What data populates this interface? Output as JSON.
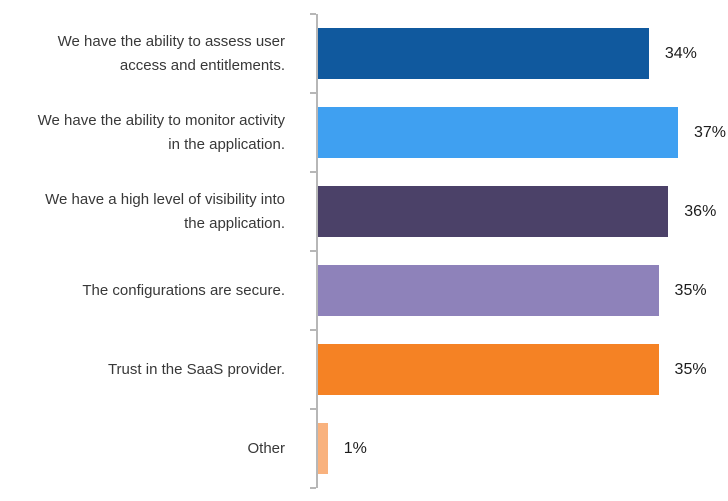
{
  "chart_data": {
    "type": "bar",
    "orientation": "horizontal",
    "title": "",
    "categories": [
      "We have the ability to assess user\naccess and entitlements.",
      "We have the ability to monitor activity\nin the application.",
      "We have a high level of visibility into\nthe application.",
      "The configurations are secure.",
      "Trust in the SaaS provider.",
      "Other"
    ],
    "values": [
      34,
      37,
      36,
      35,
      35,
      1
    ],
    "value_labels": [
      "34%",
      "37%",
      "36%",
      "35%",
      "35%",
      "1%"
    ],
    "colors": [
      "#10599E",
      "#3FA0F1",
      "#4B4168",
      "#8E82BA",
      "#F58224",
      "#F9B27E"
    ],
    "xlim": [
      0,
      42
    ],
    "gridlines": false,
    "legend": "none",
    "axis_line_color": "#b7b7b7",
    "label_color": "#383838",
    "value_label_color": "#1c1c1c"
  }
}
